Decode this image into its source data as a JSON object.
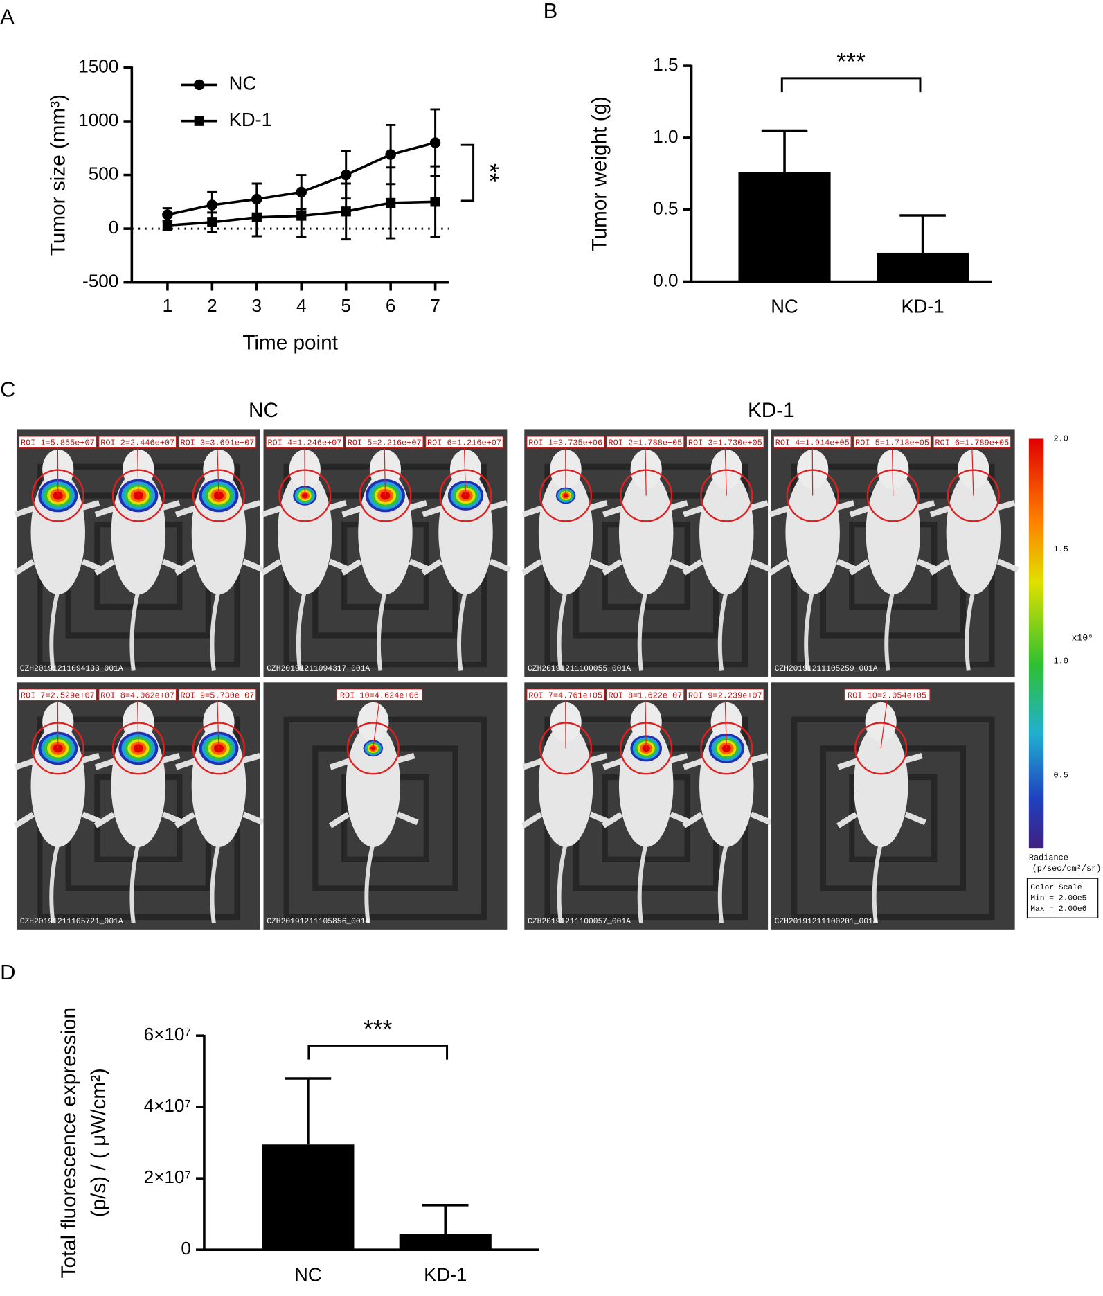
{
  "chart_data": [
    {
      "type": "line",
      "panel_label": "A",
      "xlabel": "Time point",
      "ylabel": "Tumor size (mm³)",
      "x": [
        1,
        2,
        3,
        4,
        5,
        6,
        7
      ],
      "xlim": [
        0.2,
        7.3
      ],
      "xticks": [
        1,
        2,
        3,
        4,
        5,
        6,
        7
      ],
      "ylim": [
        -500,
        1500
      ],
      "yticks": [
        -500,
        0,
        500,
        1000,
        1500
      ],
      "zero_line": true,
      "grid": false,
      "legend": "upper left",
      "series": [
        {
          "name": "NC",
          "color": "#000000",
          "marker": "circle",
          "values": [
            130,
            220,
            275,
            340,
            500,
            690,
            800
          ],
          "errors": [
            60,
            120,
            145,
            160,
            220,
            275,
            310
          ]
        },
        {
          "name": "KD-1",
          "color": "#000000",
          "marker": "square",
          "values": [
            30,
            60,
            105,
            120,
            160,
            240,
            250
          ],
          "errors": [
            40,
            90,
            175,
            200,
            260,
            330,
            330
          ]
        }
      ],
      "annotation": "**"
    },
    {
      "type": "bar",
      "panel_label": "B",
      "ylabel": "Tumor weight (g)",
      "categories": [
        "NC",
        "KD-1"
      ],
      "values": [
        0.76,
        0.2
      ],
      "errors": [
        0.29,
        0.26
      ],
      "color": "#000000",
      "ylim": [
        0,
        1.5
      ],
      "yticks": [
        {
          "value": 0,
          "label": "0.0"
        },
        {
          "value": 0.5,
          "label": "0.5"
        },
        {
          "value": 1,
          "label": "1.0"
        },
        {
          "value": 1.5,
          "label": "1.5"
        }
      ],
      "grid": false,
      "annotation": "***"
    },
    {
      "type": "bar",
      "panel_label": "D",
      "ylabel": [
        "Total fluorescence expression",
        "(p/s) / ( μW/cm²)"
      ],
      "categories": [
        "NC",
        "KD-1"
      ],
      "values": [
        29500000,
        4500000
      ],
      "errors": [
        18500000,
        8000000
      ],
      "color": "#000000",
      "ylim": [
        0,
        60000000
      ],
      "yticks": [
        0,
        {
          "value": 20000000,
          "label": "2×10⁷"
        },
        {
          "value": 40000000,
          "label": "4×10⁷"
        },
        {
          "value": 60000000,
          "label": "6×10⁷"
        }
      ],
      "grid": false,
      "annotation": "***"
    }
  ],
  "images": {
    "panel_label": "C",
    "groups": [
      {
        "title": "NC",
        "panels": [
          {
            "rois": [
              "ROI 1=5.855e+07",
              "ROI 2=2.446e+07",
              "ROI 3=3.691e+07"
            ],
            "file": "CZH20191211094133_001A"
          },
          {
            "rois": [
              "ROI 4=1.246e+07",
              "ROI 5=2.216e+07",
              "ROI 6=1.216e+07"
            ],
            "file": "CZH20191211094317_001A"
          },
          {
            "rois": [
              "ROI 7=2.529e+07",
              "ROI 8=4.062e+07",
              "ROI 9=5.730e+07"
            ],
            "file": "CZH20191211105721_001A"
          },
          {
            "rois": [
              "ROI 10=4.624e+06"
            ],
            "file": "CZH20191211105856_001A"
          }
        ]
      },
      {
        "title": "KD-1",
        "panels": [
          {
            "rois": [
              "ROI 1=3.735e+06",
              "ROI 2=1.788e+05",
              "ROI 3=1.730e+05"
            ],
            "file": "CZH20191211100055_001A"
          },
          {
            "rois": [
              "ROI 4=1.914e+05",
              "ROI 5=1.718e+05",
              "ROI 6=1.789e+05"
            ],
            "file": "CZH20191211105259_001A"
          },
          {
            "rois": [
              "ROI 7=4.761e+05",
              "ROI 8=1.622e+07",
              "ROI 9=2.239e+07"
            ],
            "file": "CZH20191211100057_001A"
          },
          {
            "rois": [
              "ROI 10=2.054e+05"
            ],
            "file": "CZH20191211100201_001A"
          }
        ]
      }
    ],
    "colorbar": {
      "ticks": [
        "2.0",
        "1.5",
        "1.0",
        "0.5"
      ],
      "unit": "x10⁶",
      "label": "Radiance",
      "units": "(p/sec/cm²/sr)",
      "scale_title": "Color Scale",
      "min": "Min = 2.00e5",
      "max": "Max = 2.00e6"
    }
  }
}
